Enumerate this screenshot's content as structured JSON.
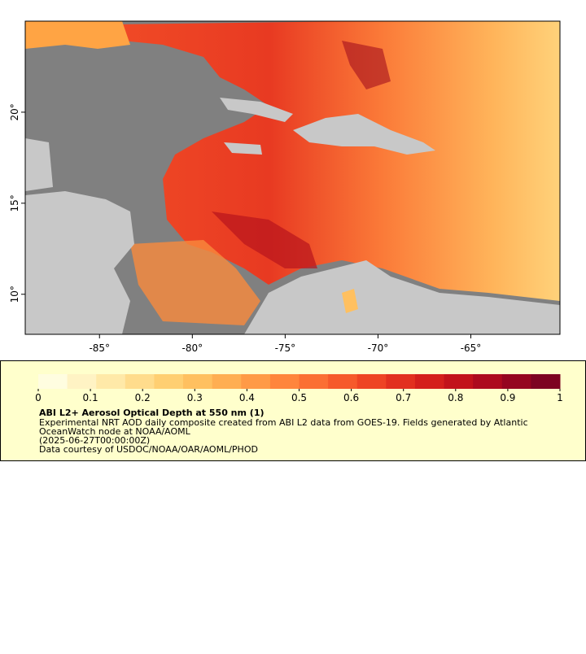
{
  "chart_data": {
    "type": "map",
    "xlim": [
      -89,
      -60.2
    ],
    "ylim": [
      7.8,
      25
    ],
    "xticks": [
      {
        "value": -85,
        "label": "-85°"
      },
      {
        "value": -80,
        "label": "-80°"
      },
      {
        "value": -75,
        "label": "-75°"
      },
      {
        "value": -70,
        "label": "-70°"
      },
      {
        "value": -65,
        "label": "-65°"
      }
    ],
    "yticks": [
      {
        "value": 10,
        "label": "10°"
      },
      {
        "value": 15,
        "label": "15°"
      },
      {
        "value": 20,
        "label": "20°"
      }
    ],
    "colorbar": {
      "lim": [
        0,
        1
      ],
      "ticks": [
        0,
        0.1,
        0.2,
        0.3,
        0.4,
        0.5,
        0.6,
        0.7,
        0.8,
        0.9,
        1
      ],
      "colors": [
        "#fffde0",
        "#fff3c4",
        "#ffe9a8",
        "#ffdc8c",
        "#ffcf72",
        "#ffc060",
        "#ffae52",
        "#ff9a46",
        "#ff853c",
        "#fb6f33",
        "#f65a2b",
        "#ee4424",
        "#e2301f",
        "#d41f1c",
        "#c2121b",
        "#ad0a1e",
        "#950520",
        "#7d0322"
      ]
    },
    "title": "ABI L2+ Aerosol Optical Depth at 550 nm (1)",
    "description": [
      "Experimental NRT AOD daily composite created from ABI L2 data from GOES-19. Fields generated by Atlantic",
      "OceanWatch node at NOAA/AOML",
      "(2025-06-27T00:00:00Z)",
      "Data courtesy of USDOC/NOAA/OAR/AOML/PHOD"
    ]
  }
}
